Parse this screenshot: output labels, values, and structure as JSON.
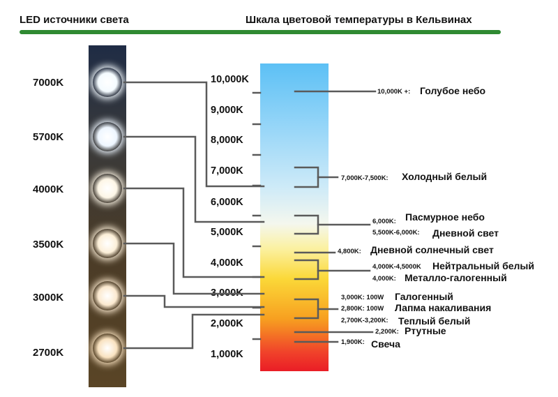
{
  "header": {
    "left_title": "LED источники света",
    "right_title": "Шкала цветовой температуры в Кельвинах"
  },
  "leds": [
    {
      "label": "7000K",
      "color": "#f4fbff"
    },
    {
      "label": "5700K",
      "color": "#eef6ff"
    },
    {
      "label": "4000K",
      "color": "#fdf6e6"
    },
    {
      "label": "3500K",
      "color": "#fcefd8"
    },
    {
      "label": "3000K",
      "color": "#fbe9cf"
    },
    {
      "label": "2700K",
      "color": "#f9e2c0"
    }
  ],
  "scale_ticks": [
    "10,000K",
    "9,000K",
    "8,000K",
    "7,000K",
    "6,000K",
    "5,000K",
    "4,000K",
    "3,000K",
    "2,000K",
    "1,000K"
  ],
  "annotations": {
    "blue_sky": {
      "code": "10,000K +:",
      "name": "Голубое небо"
    },
    "cool_white": {
      "code": "7,000K-7,500K:",
      "name": "Холодный белый"
    },
    "overcast": {
      "code": "6,000K:",
      "name": "Пасмурное небо"
    },
    "daylight": {
      "code": "5,500K-6,000K:",
      "name": "Дневной свет"
    },
    "sunlight": {
      "code": "4,800K:",
      "name": "Дневной солнечный свет"
    },
    "neutral": {
      "code": "4,000K-4,5000K",
      "name": "Нейтральный белый"
    },
    "metal_halide": {
      "code": "4,000K:",
      "name": "Металло-галогенный"
    },
    "halogen": {
      "code": "3,000K: 100W",
      "name": "Галогенный"
    },
    "incandescent": {
      "code": "2,800K: 100W",
      "name": "Лапма накаливания"
    },
    "warm_white": {
      "code": "2,700K-3,200K:",
      "name": "Теплый белый"
    },
    "mercury": {
      "code": "2,200K:",
      "name": "Ртутные"
    },
    "candle": {
      "code": "1,900K:",
      "name": "Свеча"
    }
  },
  "colors": {
    "header_rule": "#2f8a32",
    "scale_top": "#5cc0f5",
    "scale_bottom": "#ea1d26",
    "leader_line": "#5a5a5a"
  }
}
